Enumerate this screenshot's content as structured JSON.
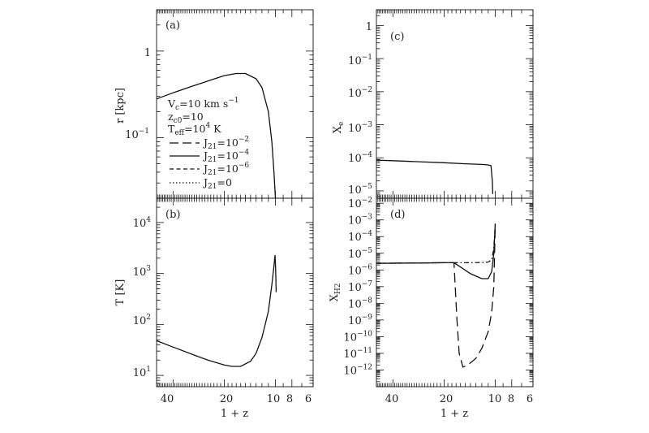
{
  "chart_data": [
    {
      "panel": "a",
      "type": "line",
      "panel_label": "(a)",
      "ylabel": "r [kpc]",
      "xlabel": "",
      "xscale": "log",
      "yscale": "log",
      "xlim": [
        50,
        6
      ],
      "ylim": [
        0.02,
        3
      ],
      "y_ticks": [
        {
          "label": "1"
        },
        {
          "label": "10",
          "sup": "−1"
        }
      ],
      "legend": {
        "placement": "left-middle",
        "params": [
          {
            "base": "V",
            "sub": "c",
            "mid": "=10 km s",
            "sup": "−1"
          },
          {
            "base": "z",
            "sub": "c0",
            "mid": "=10",
            "sup": ""
          },
          {
            "base": "T",
            "sub": "eff",
            "mid": "=10",
            "sup": "4",
            "tail": " K"
          }
        ],
        "entries": [
          {
            "base": "J",
            "sub": "21",
            "mid": "=10",
            "sup": "−2",
            "style": "long-dash"
          },
          {
            "base": "J",
            "sub": "21",
            "mid": "=10",
            "sup": "−4",
            "style": "solid"
          },
          {
            "base": "J",
            "sub": "21",
            "mid": "=10",
            "sup": "−6",
            "style": "short-dash"
          },
          {
            "base": "J",
            "sub": "21",
            "mid": "=0",
            "sup": "",
            "style": "dotted"
          }
        ]
      },
      "series": [
        {
          "style": "solid",
          "x": [
            50,
            40,
            30,
            25,
            20,
            17,
            15,
            13,
            12,
            11,
            10.5,
            10.2,
            10.0
          ],
          "y": [
            0.28,
            0.33,
            0.4,
            0.45,
            0.52,
            0.55,
            0.55,
            0.48,
            0.38,
            0.2,
            0.09,
            0.04,
            0.018
          ]
        }
      ]
    },
    {
      "panel": "b",
      "type": "line",
      "panel_label": "(b)",
      "ylabel": "T [K]",
      "xlabel": "1 + z",
      "xscale": "log",
      "yscale": "log",
      "xlim": [
        50,
        6
      ],
      "ylim": [
        6,
        30000
      ],
      "x_ticks": [
        "40",
        "20",
        "10",
        "8",
        "6"
      ],
      "y_ticks": [
        {
          "base": "10",
          "sup": "4"
        },
        {
          "base": "10",
          "sup": "3"
        },
        {
          "base": "10",
          "sup": "2"
        },
        {
          "base": "10",
          "sup": "1"
        }
      ],
      "series": [
        {
          "style": "solid",
          "x": [
            50,
            40,
            30,
            25,
            20,
            18,
            16,
            14,
            13,
            12,
            11,
            10.5,
            10.2,
            10.05,
            10.0,
            9.95,
            9.9
          ],
          "y": [
            48,
            36,
            25,
            20,
            16,
            15,
            15,
            19,
            27,
            55,
            180,
            600,
            1400,
            2300,
            1600,
            900,
            430
          ]
        }
      ]
    },
    {
      "panel": "c",
      "type": "line",
      "panel_label": "(c)",
      "ylabel": "X_e",
      "xlabel": "",
      "xscale": "log",
      "yscale": "log",
      "xlim": [
        50,
        6
      ],
      "ylim": [
        6e-06,
        3
      ],
      "y_ticks": [
        {
          "base": "1",
          "sup": ""
        },
        {
          "base": "10",
          "sup": "−1"
        },
        {
          "base": "10",
          "sup": "−2"
        },
        {
          "base": "10",
          "sup": "−3"
        },
        {
          "base": "10",
          "sup": "−4"
        },
        {
          "base": "10",
          "sup": "−5"
        }
      ],
      "series": [
        {
          "style": "solid",
          "x": [
            50,
            40,
            30,
            20,
            15,
            12,
            11,
            10.6,
            10.4,
            10.35
          ],
          "y": [
            8.5e-05,
            8.2e-05,
            7.7e-05,
            7.1e-05,
            6.6e-05,
            6.3e-05,
            6.1e-05,
            5.8e-05,
            2e-05,
            8e-06
          ]
        }
      ]
    },
    {
      "panel": "d",
      "type": "line",
      "panel_label": "(d)",
      "ylabel": "X_H2",
      "xlabel": "1 + z",
      "xscale": "log",
      "yscale": "log",
      "xlim": [
        50,
        6
      ],
      "ylim": [
        1e-13,
        0.02
      ],
      "x_ticks": [
        "40",
        "20",
        "10",
        "8",
        "6"
      ],
      "y_ticks": [
        {
          "base": "10",
          "sup": "−2"
        },
        {
          "base": "10",
          "sup": "−3"
        },
        {
          "base": "10",
          "sup": "−4"
        },
        {
          "base": "10",
          "sup": "−5"
        },
        {
          "base": "10",
          "sup": "−6"
        },
        {
          "base": "10",
          "sup": "−7"
        },
        {
          "base": "10",
          "sup": "−8"
        },
        {
          "base": "10",
          "sup": "−9"
        },
        {
          "base": "10",
          "sup": "−10"
        },
        {
          "base": "10",
          "sup": "−11"
        },
        {
          "base": "10",
          "sup": "−12"
        }
      ],
      "series": [
        {
          "style": "long-dash",
          "x": [
            50,
            30,
            20,
            17.5,
            16.8,
            16.3,
            15.5,
            14.5,
            13,
            12,
            11,
            10.5,
            10.2,
            10.0
          ],
          "y": [
            2.5e-06,
            2.6e-06,
            2.7e-06,
            2.7e-06,
            1e-09,
            1e-11,
            1.5e-12,
            2e-12,
            5e-12,
            2e-11,
            2e-10,
            3e-09,
            1e-07,
            0.0006
          ]
        },
        {
          "style": "solid",
          "x": [
            50,
            30,
            20,
            17.5,
            16,
            14,
            12,
            11,
            10.5,
            10.2,
            10.0
          ],
          "y": [
            2.5e-06,
            2.6e-06,
            2.7e-06,
            2.7e-06,
            1.5e-06,
            6e-07,
            3e-07,
            3e-07,
            8e-07,
            1e-05,
            0.0006
          ]
        },
        {
          "style": "dash-dot",
          "x": [
            50,
            30,
            20,
            17.5,
            15,
            12,
            11,
            10.5,
            10.2,
            10.0
          ],
          "y": [
            2.5e-06,
            2.6e-06,
            2.7e-06,
            2.7e-06,
            2.7e-06,
            2.8e-06,
            3e-06,
            4e-06,
            2e-05,
            0.0006
          ]
        }
      ]
    }
  ]
}
